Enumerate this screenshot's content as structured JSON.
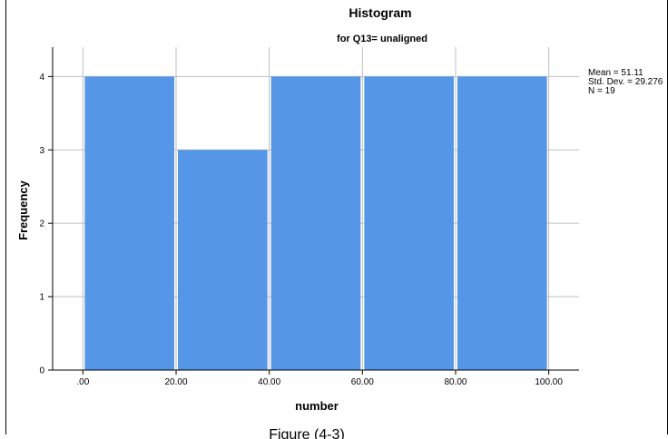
{
  "chart_data": {
    "type": "bar",
    "subtype": "histogram",
    "title": "Histogram",
    "subtitle": "for Q13= unaligned",
    "xlabel": "number",
    "ylabel": "Frequency",
    "bins": [
      {
        "from": 0,
        "to": 20,
        "value": 4
      },
      {
        "from": 20,
        "to": 40,
        "value": 3
      },
      {
        "from": 40,
        "to": 60,
        "value": 4
      },
      {
        "from": 60,
        "to": 80,
        "value": 4
      },
      {
        "from": 80,
        "to": 100,
        "value": 4
      }
    ],
    "x_ticks": [
      ".00",
      "20.00",
      "40.00",
      "60.00",
      "80.00",
      "100.00"
    ],
    "x_tick_values": [
      0,
      20,
      40,
      60,
      80,
      100
    ],
    "y_ticks": [
      "0",
      "1",
      "2",
      "3",
      "4"
    ],
    "y_tick_values": [
      0,
      1,
      2,
      3,
      4
    ],
    "xlim": [
      -6.5,
      106.5
    ],
    "ylim": [
      0,
      4.4
    ],
    "grid": true,
    "bar_color": "#5596e6",
    "grid_color": "#bfbfbf",
    "stats": {
      "mean": "Mean = 51.11",
      "std_dev": "Std. Dev. = 29.276",
      "n": "N = 19"
    },
    "legend_position": "top-right"
  },
  "caption": "Figure (4-3)"
}
